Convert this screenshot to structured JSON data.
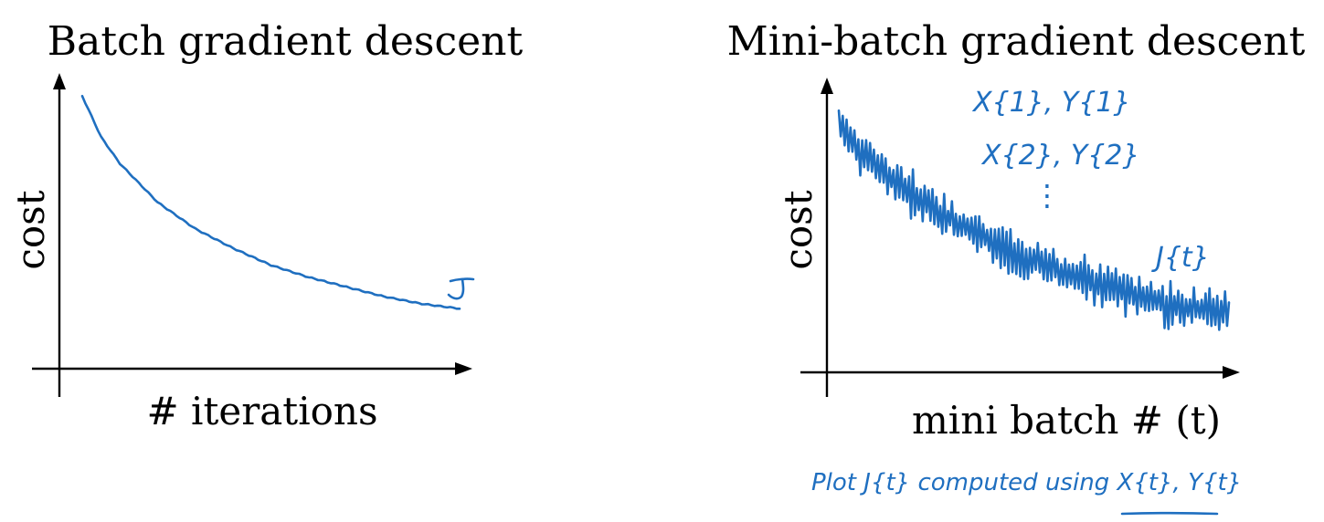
{
  "chart_data": [
    {
      "type": "line",
      "title": "Batch gradient descent",
      "xlabel": "# iterations",
      "ylabel": "cost",
      "grid": false,
      "series": [
        {
          "name": "J",
          "x": [
            0,
            0.05,
            0.1,
            0.15,
            0.2,
            0.3,
            0.4,
            0.5,
            0.6,
            0.7,
            0.8,
            0.9,
            1.0
          ],
          "y": [
            1.0,
            0.83,
            0.72,
            0.64,
            0.56,
            0.45,
            0.37,
            0.3,
            0.25,
            0.21,
            0.17,
            0.14,
            0.12
          ]
        }
      ]
    },
    {
      "type": "line",
      "title": "Mini-batch gradient descent",
      "xlabel": "mini batch # (t)",
      "ylabel": "cost",
      "grid": false,
      "series": [
        {
          "name": "J^{t}",
          "x": [
            0,
            0.1,
            0.2,
            0.3,
            0.4,
            0.5,
            0.6,
            0.7,
            0.8,
            0.9,
            1.0
          ],
          "y": [
            0.9,
            0.74,
            0.62,
            0.52,
            0.44,
            0.37,
            0.31,
            0.26,
            0.22,
            0.19,
            0.17
          ]
        }
      ]
    }
  ],
  "annotations": {
    "batch_j": "J",
    "x1y1": "X{1}, Y{1}",
    "x2y2": "X{2}, Y{2}",
    "dots": "⋮",
    "jt": "J{t}",
    "note": "Plot J{t} computed using X{t}, Y{t}"
  }
}
